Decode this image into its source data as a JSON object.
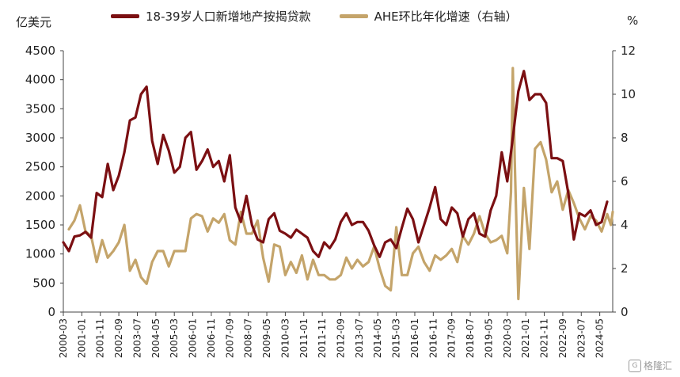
{
  "chart_data": {
    "type": "line",
    "left_unit": "亿美元",
    "right_unit": "%",
    "ylim_left": [
      0,
      4500
    ],
    "yticks_left": [
      0,
      500,
      1000,
      1500,
      2000,
      2500,
      3000,
      3500,
      4000,
      4500
    ],
    "ylim_right": [
      0,
      12
    ],
    "yticks_right": [
      0,
      2,
      4,
      6,
      8,
      10,
      12
    ],
    "x_start": "2000-03",
    "x_end": "2024-12",
    "x_tick_labels": [
      "2000-03",
      "2001-01",
      "2001-11",
      "2002-09",
      "2003-07",
      "2004-05",
      "2005-03",
      "2006-01",
      "2006-11",
      "2007-09",
      "2008-07",
      "2009-05",
      "2010-03",
      "2011-01",
      "2011-11",
      "2012-09",
      "2013-07",
      "2014-05",
      "2015-03",
      "2016-01",
      "2016-11",
      "2017-09",
      "2018-07",
      "2019-05",
      "2020-03",
      "2021-01",
      "2021-11",
      "2022-09",
      "2023-07",
      "2024-05"
    ],
    "grid": false,
    "legend_position": "top",
    "series": [
      {
        "name": "18-39岁人口新增地产按揭贷款",
        "axis": "left",
        "color": "#7b0f12",
        "points": [
          [
            "2000-03",
            1200
          ],
          [
            "2000-06",
            1050
          ],
          [
            "2000-09",
            1300
          ],
          [
            "2000-12",
            1320
          ],
          [
            "2001-03",
            1380
          ],
          [
            "2001-06",
            1280
          ],
          [
            "2001-09",
            2050
          ],
          [
            "2001-12",
            1980
          ],
          [
            "2002-03",
            2550
          ],
          [
            "2002-06",
            2100
          ],
          [
            "2002-09",
            2350
          ],
          [
            "2002-12",
            2750
          ],
          [
            "2003-03",
            3300
          ],
          [
            "2003-06",
            3350
          ],
          [
            "2003-09",
            3750
          ],
          [
            "2003-12",
            3880
          ],
          [
            "2004-03",
            2950
          ],
          [
            "2004-06",
            2550
          ],
          [
            "2004-09",
            3050
          ],
          [
            "2004-12",
            2780
          ],
          [
            "2005-03",
            2400
          ],
          [
            "2005-06",
            2500
          ],
          [
            "2005-09",
            3000
          ],
          [
            "2005-12",
            3100
          ],
          [
            "2006-03",
            2450
          ],
          [
            "2006-06",
            2600
          ],
          [
            "2006-09",
            2800
          ],
          [
            "2006-12",
            2500
          ],
          [
            "2007-03",
            2600
          ],
          [
            "2007-06",
            2250
          ],
          [
            "2007-09",
            2700
          ],
          [
            "2007-12",
            1800
          ],
          [
            "2008-03",
            1550
          ],
          [
            "2008-06",
            2000
          ],
          [
            "2008-09",
            1500
          ],
          [
            "2008-12",
            1250
          ],
          [
            "2009-03",
            1200
          ],
          [
            "2009-06",
            1600
          ],
          [
            "2009-09",
            1700
          ],
          [
            "2009-12",
            1400
          ],
          [
            "2010-03",
            1350
          ],
          [
            "2010-06",
            1280
          ],
          [
            "2010-09",
            1420
          ],
          [
            "2010-12",
            1350
          ],
          [
            "2011-03",
            1280
          ],
          [
            "2011-06",
            1050
          ],
          [
            "2011-09",
            950
          ],
          [
            "2011-12",
            1200
          ],
          [
            "2012-03",
            1100
          ],
          [
            "2012-06",
            1250
          ],
          [
            "2012-09",
            1550
          ],
          [
            "2012-12",
            1700
          ],
          [
            "2013-03",
            1500
          ],
          [
            "2013-06",
            1550
          ],
          [
            "2013-09",
            1550
          ],
          [
            "2013-12",
            1400
          ],
          [
            "2014-03",
            1150
          ],
          [
            "2014-06",
            950
          ],
          [
            "2014-09",
            1200
          ],
          [
            "2014-12",
            1250
          ],
          [
            "2015-03",
            1100
          ],
          [
            "2015-06",
            1450
          ],
          [
            "2015-09",
            1780
          ],
          [
            "2015-12",
            1600
          ],
          [
            "2016-03",
            1200
          ],
          [
            "2016-06",
            1500
          ],
          [
            "2016-09",
            1800
          ],
          [
            "2016-12",
            2150
          ],
          [
            "2017-03",
            1600
          ],
          [
            "2017-06",
            1500
          ],
          [
            "2017-09",
            1800
          ],
          [
            "2017-12",
            1700
          ],
          [
            "2018-03",
            1300
          ],
          [
            "2018-06",
            1600
          ],
          [
            "2018-09",
            1700
          ],
          [
            "2018-12",
            1350
          ],
          [
            "2019-03",
            1300
          ],
          [
            "2019-06",
            1750
          ],
          [
            "2019-09",
            2000
          ],
          [
            "2019-12",
            2750
          ],
          [
            "2020-03",
            2250
          ],
          [
            "2020-06",
            3000
          ],
          [
            "2020-09",
            3800
          ],
          [
            "2020-12",
            4150
          ],
          [
            "2021-03",
            3650
          ],
          [
            "2021-06",
            3750
          ],
          [
            "2021-09",
            3750
          ],
          [
            "2021-12",
            3600
          ],
          [
            "2022-03",
            2650
          ],
          [
            "2022-06",
            2650
          ],
          [
            "2022-09",
            2600
          ],
          [
            "2022-12",
            2050
          ],
          [
            "2023-03",
            1250
          ],
          [
            "2023-06",
            1700
          ],
          [
            "2023-09",
            1650
          ],
          [
            "2023-12",
            1750
          ],
          [
            "2024-03",
            1500
          ],
          [
            "2024-06",
            1550
          ],
          [
            "2024-09",
            1900
          ]
        ]
      },
      {
        "name": "AHE环比年化增速（右轴）",
        "axis": "right",
        "color": "#c4a46a",
        "points": [
          [
            "2000-06",
            3.8
          ],
          [
            "2000-09",
            4.2
          ],
          [
            "2000-12",
            4.9
          ],
          [
            "2001-03",
            3.7
          ],
          [
            "2001-06",
            3.5
          ],
          [
            "2001-09",
            2.3
          ],
          [
            "2001-12",
            3.3
          ],
          [
            "2002-03",
            2.5
          ],
          [
            "2002-06",
            2.8
          ],
          [
            "2002-09",
            3.2
          ],
          [
            "2002-12",
            4.0
          ],
          [
            "2003-03",
            1.9
          ],
          [
            "2003-06",
            2.4
          ],
          [
            "2003-09",
            1.6
          ],
          [
            "2003-12",
            1.3
          ],
          [
            "2004-03",
            2.3
          ],
          [
            "2004-06",
            2.8
          ],
          [
            "2004-09",
            2.8
          ],
          [
            "2004-12",
            2.1
          ],
          [
            "2005-03",
            2.8
          ],
          [
            "2005-06",
            2.8
          ],
          [
            "2005-09",
            2.8
          ],
          [
            "2005-12",
            4.3
          ],
          [
            "2006-03",
            4.5
          ],
          [
            "2006-06",
            4.4
          ],
          [
            "2006-09",
            3.7
          ],
          [
            "2006-12",
            4.3
          ],
          [
            "2007-03",
            4.1
          ],
          [
            "2007-06",
            4.5
          ],
          [
            "2007-09",
            3.3
          ],
          [
            "2007-12",
            3.1
          ],
          [
            "2008-03",
            4.6
          ],
          [
            "2008-06",
            3.6
          ],
          [
            "2008-09",
            3.6
          ],
          [
            "2008-12",
            4.2
          ],
          [
            "2009-03",
            2.5
          ],
          [
            "2009-06",
            1.4
          ],
          [
            "2009-09",
            3.1
          ],
          [
            "2009-12",
            3.0
          ],
          [
            "2010-03",
            1.7
          ],
          [
            "2010-06",
            2.3
          ],
          [
            "2010-09",
            1.8
          ],
          [
            "2010-12",
            2.6
          ],
          [
            "2011-03",
            1.5
          ],
          [
            "2011-06",
            2.4
          ],
          [
            "2011-09",
            1.7
          ],
          [
            "2011-12",
            1.7
          ],
          [
            "2012-03",
            1.5
          ],
          [
            "2012-06",
            1.5
          ],
          [
            "2012-09",
            1.7
          ],
          [
            "2012-12",
            2.5
          ],
          [
            "2013-03",
            2.0
          ],
          [
            "2013-06",
            2.4
          ],
          [
            "2013-09",
            2.1
          ],
          [
            "2013-12",
            2.3
          ],
          [
            "2014-03",
            3.0
          ],
          [
            "2014-06",
            2.0
          ],
          [
            "2014-09",
            1.2
          ],
          [
            "2014-12",
            1.0
          ],
          [
            "2015-03",
            3.9
          ],
          [
            "2015-06",
            1.7
          ],
          [
            "2015-09",
            1.7
          ],
          [
            "2015-12",
            2.7
          ],
          [
            "2016-03",
            3.0
          ],
          [
            "2016-06",
            2.3
          ],
          [
            "2016-09",
            1.9
          ],
          [
            "2016-12",
            2.6
          ],
          [
            "2017-03",
            2.4
          ],
          [
            "2017-06",
            2.6
          ],
          [
            "2017-09",
            2.9
          ],
          [
            "2017-12",
            2.3
          ],
          [
            "2018-03",
            3.5
          ],
          [
            "2018-06",
            3.1
          ],
          [
            "2018-09",
            3.6
          ],
          [
            "2018-12",
            4.4
          ],
          [
            "2019-03",
            3.6
          ],
          [
            "2019-06",
            3.2
          ],
          [
            "2019-09",
            3.3
          ],
          [
            "2019-12",
            3.5
          ],
          [
            "2020-03",
            2.7
          ],
          [
            "2020-05",
            5.5
          ],
          [
            "2020-06",
            11.2
          ],
          [
            "2020-07",
            7.0
          ],
          [
            "2020-09",
            0.6
          ],
          [
            "2020-12",
            5.7
          ],
          [
            "2021-03",
            2.9
          ],
          [
            "2021-06",
            7.5
          ],
          [
            "2021-09",
            7.8
          ],
          [
            "2021-12",
            7.0
          ],
          [
            "2022-03",
            5.5
          ],
          [
            "2022-06",
            6.0
          ],
          [
            "2022-09",
            4.7
          ],
          [
            "2022-12",
            5.6
          ],
          [
            "2023-03",
            5.0
          ],
          [
            "2023-06",
            4.3
          ],
          [
            "2023-09",
            3.8
          ],
          [
            "2023-12",
            4.4
          ],
          [
            "2024-03",
            4.2
          ],
          [
            "2024-06",
            3.7
          ],
          [
            "2024-09",
            4.5
          ],
          [
            "2024-11",
            4.0
          ],
          [
            "2024-12",
            4.6
          ]
        ]
      }
    ]
  },
  "watermark": {
    "icon": "gelonghui-logo-icon",
    "text": "格隆汇"
  }
}
